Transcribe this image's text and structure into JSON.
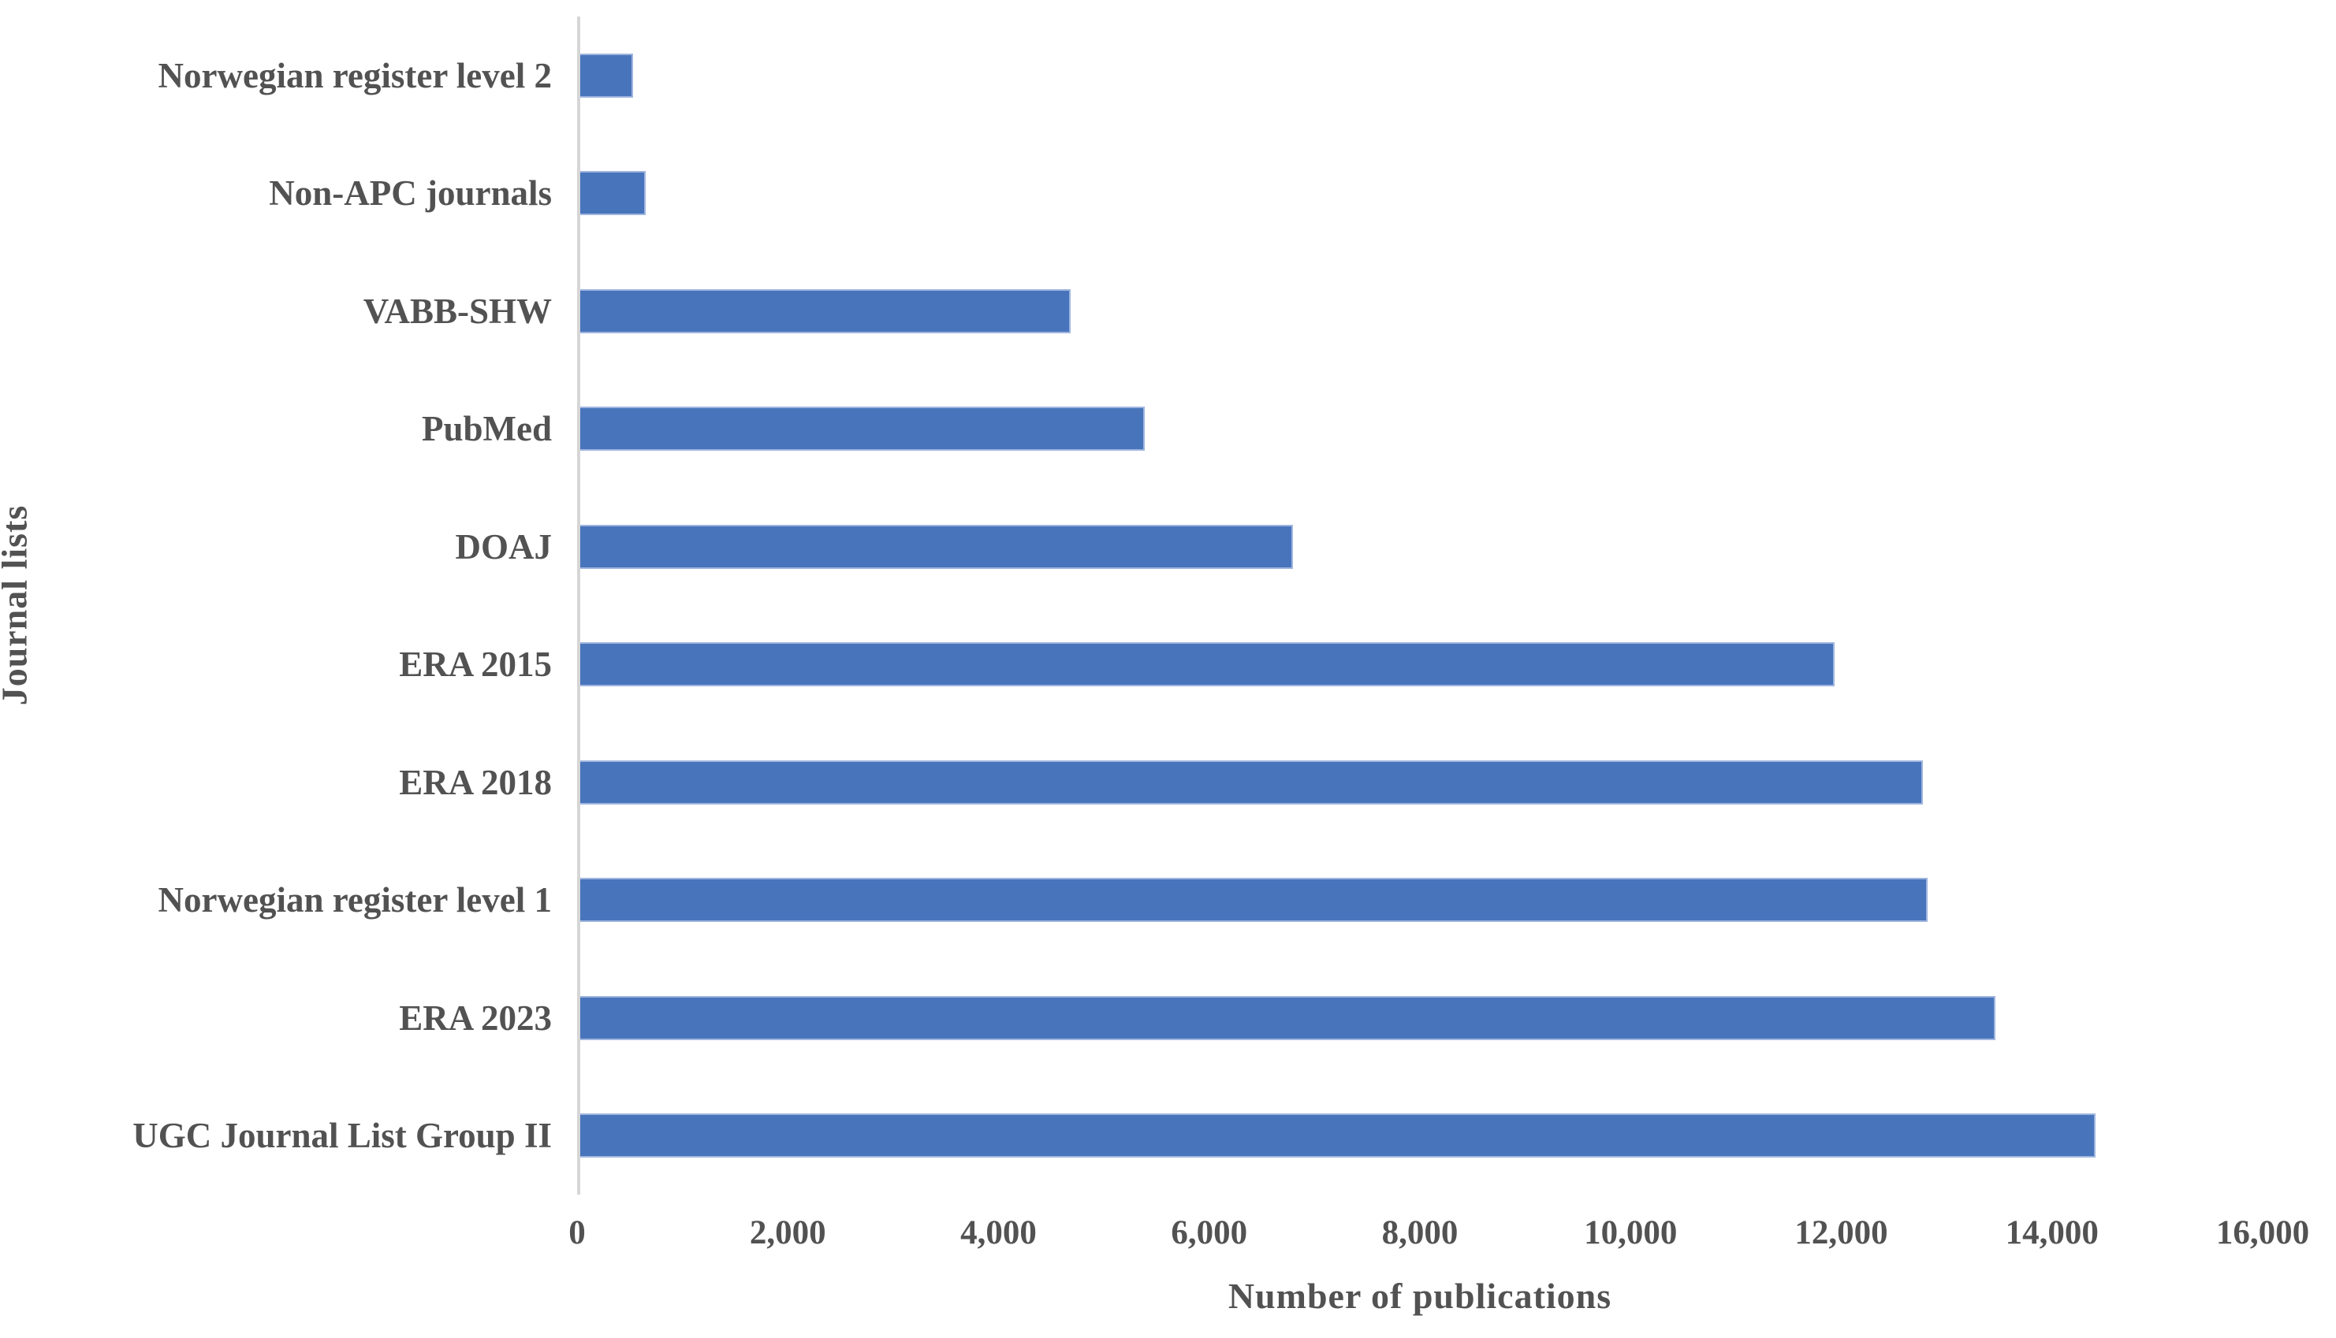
{
  "chart_data": {
    "type": "bar",
    "orientation": "horizontal",
    "title": "",
    "xlabel": "Number of publications",
    "ylabel": "Journal lists",
    "categories": [
      "Norwegian register level 2",
      "Non-APC journals",
      "VABB-SHW",
      "PubMed",
      "DOAJ",
      "ERA 2015",
      "ERA 2018",
      "Norwegian register level 1",
      "ERA 2023",
      "UGC Journal List Group II"
    ],
    "values": [
      500,
      620,
      4660,
      5370,
      6780,
      11930,
      12770,
      12810,
      13460,
      14410
    ],
    "xlim": [
      0,
      16000
    ],
    "x_ticks": [
      0,
      2000,
      4000,
      6000,
      8000,
      10000,
      12000,
      14000,
      16000
    ],
    "x_tick_labels": [
      "0",
      "2,000",
      "4,000",
      "6,000",
      "8,000",
      "10,000",
      "12,000",
      "14,000",
      "16,000"
    ],
    "grid": false,
    "legend": false,
    "bar_color": "#4874BB",
    "bar_border_color": "#9FB5DE",
    "axis_line_color": "#D6D6D6",
    "text_color": "#525252",
    "background_color": "#FFFFFF"
  }
}
